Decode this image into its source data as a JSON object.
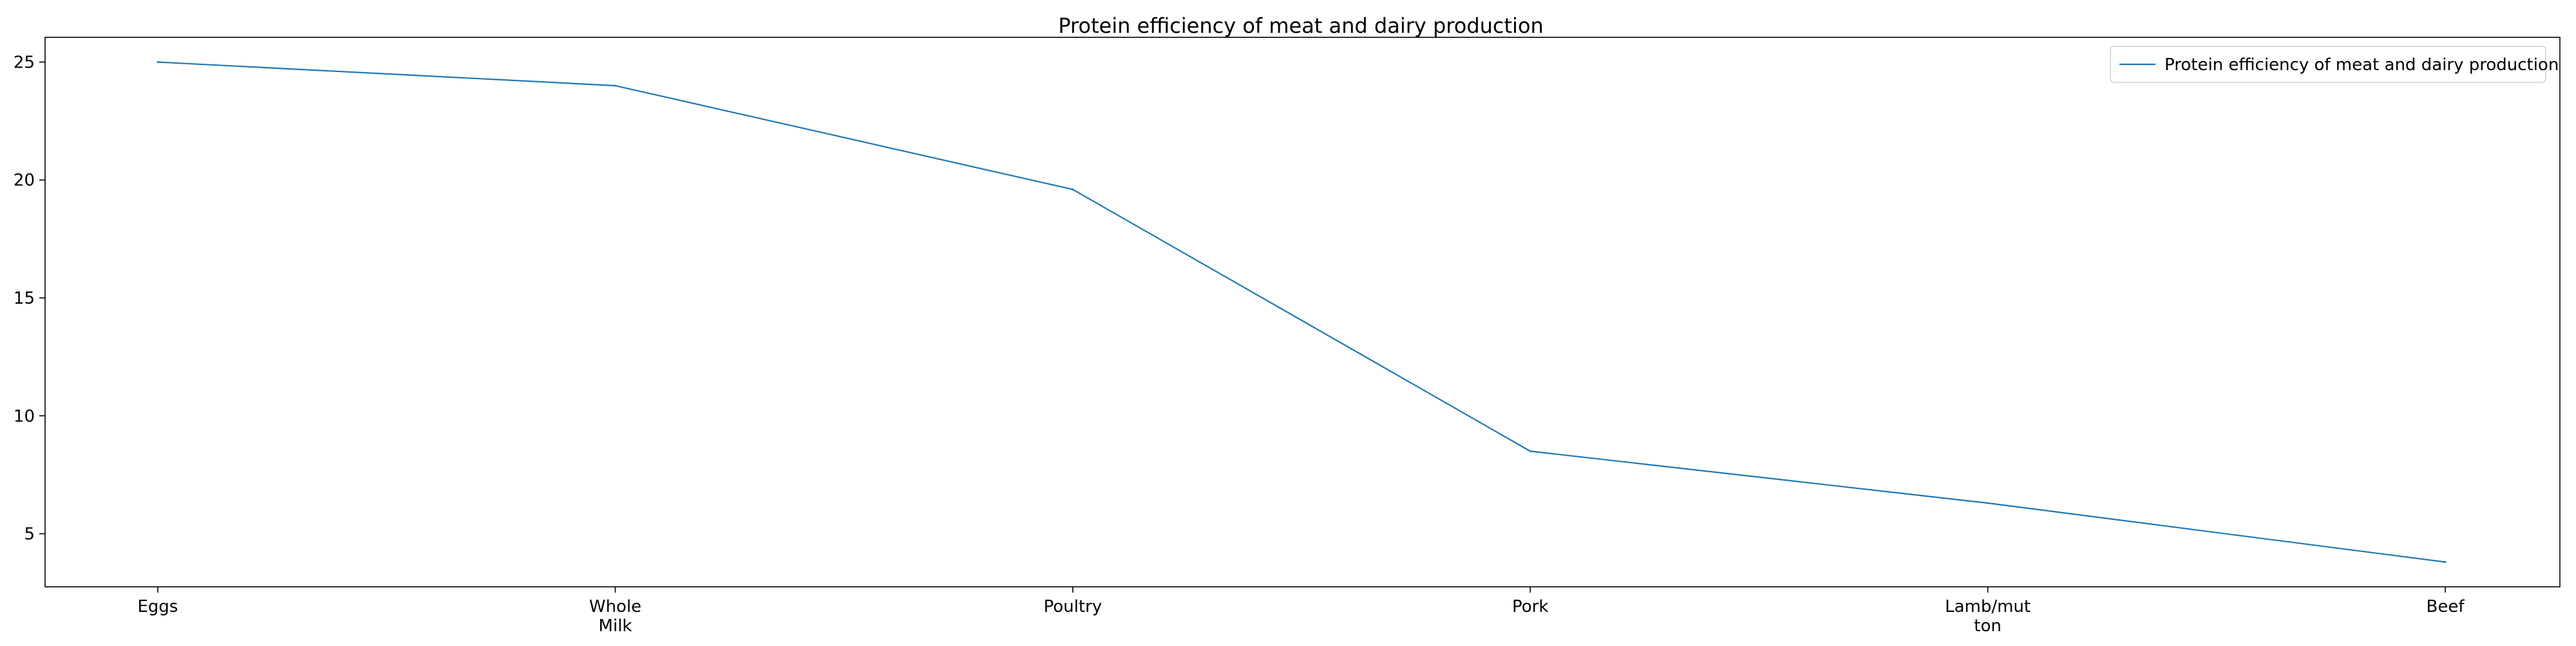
{
  "chart_data": {
    "type": "line",
    "title": "Protein efficiency of meat and dairy production",
    "xlabel": "",
    "ylabel": "",
    "categories": [
      [
        "Eggs"
      ],
      [
        "Whole",
        "Milk"
      ],
      [
        "Poultry"
      ],
      [
        "Pork"
      ],
      [
        "Lamb/mut",
        "ton"
      ],
      [
        "Beef"
      ]
    ],
    "series": [
      {
        "name": "Protein efficiency of meat and dairy production",
        "color": "#1f77b4",
        "values": [
          25.0,
          24.0,
          19.6,
          8.5,
          6.3,
          3.8
        ]
      }
    ],
    "yticks": [
      5,
      10,
      15,
      20,
      25
    ],
    "ylim": [
      2.75,
      26.05
    ],
    "grid": false,
    "legend_position": "top-right"
  }
}
